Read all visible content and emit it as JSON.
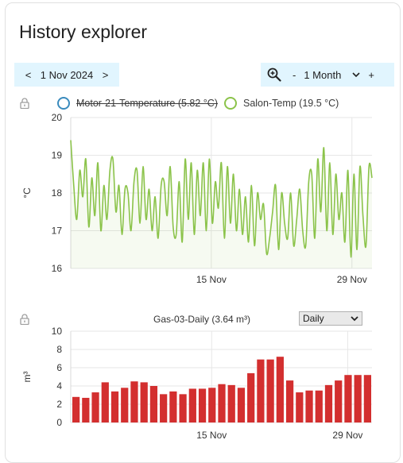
{
  "card": {
    "title": "History explorer"
  },
  "nav": {
    "prev": "<",
    "date": "1 Nov 2024",
    "next": ">"
  },
  "zoom": {
    "minus": "-",
    "range": "1 Month",
    "plus": "+",
    "icon": "zoom-icon",
    "dropdown_icon": "chevron-down-icon"
  },
  "colors": {
    "nav_bg": "#e1f5fe",
    "temp_line": "#8bc34a",
    "motor": "#3a8bbd",
    "bars": "#d32f2f"
  },
  "chart_temp": {
    "legend": [
      {
        "label": "Motor-21-Temperature (5.82 °C)",
        "hidden": true,
        "color": "#3a8bbd"
      },
      {
        "label": "Salon-Temp (19.5 °C)",
        "hidden": false,
        "color": "#8bc34a"
      }
    ]
  },
  "chart_gas": {
    "title": "Gas-03-Daily (3.64 m³)",
    "select_value": "Daily"
  },
  "chart_data": [
    {
      "type": "line",
      "ylabel": "°C",
      "ylim": [
        16,
        20
      ],
      "yticks": [
        "20",
        "19",
        "18",
        "17",
        "16"
      ],
      "xticks": [
        "15 Nov",
        "29 Nov"
      ],
      "xtick_days": [
        15,
        29
      ],
      "xrange_days": [
        1,
        31
      ],
      "series": [
        {
          "name": "Salon-Temp",
          "x_days": [
            1.0,
            1.3,
            1.6,
            1.9,
            2.2,
            2.5,
            2.8,
            3.1,
            3.4,
            3.7,
            4.0,
            4.3,
            4.6,
            4.9,
            5.2,
            5.5,
            5.8,
            6.1,
            6.4,
            6.7,
            7.0,
            7.3,
            7.6,
            7.9,
            8.2,
            8.5,
            8.8,
            9.1,
            9.4,
            9.7,
            10.0,
            10.3,
            10.6,
            10.9,
            11.2,
            11.5,
            11.8,
            12.1,
            12.4,
            12.7,
            13.0,
            13.3,
            13.6,
            13.9,
            14.2,
            14.5,
            14.8,
            15.1,
            15.4,
            15.7,
            16.0,
            16.3,
            16.6,
            16.9,
            17.2,
            17.5,
            17.8,
            18.1,
            18.4,
            18.7,
            19.0,
            19.3,
            19.6,
            19.9,
            20.2,
            20.5,
            20.8,
            21.1,
            21.4,
            21.7,
            22.0,
            22.3,
            22.6,
            22.9,
            23.2,
            23.5,
            23.8,
            24.1,
            24.4,
            24.7,
            25.0,
            25.3,
            25.6,
            25.9,
            26.2,
            26.5,
            26.8,
            27.1,
            27.4,
            27.7,
            28.0,
            28.3,
            28.6,
            28.9,
            29.2,
            29.5,
            29.8,
            30.1,
            30.4,
            30.7,
            31.0
          ],
          "values": [
            19.4,
            18.2,
            17.3,
            18.6,
            17.9,
            18.9,
            17.1,
            18.4,
            17.4,
            18.8,
            17.0,
            18.2,
            17.3,
            18.6,
            18.9,
            17.5,
            18.2,
            16.9,
            18.1,
            18.0,
            17.0,
            18.3,
            18.6,
            17.2,
            18.7,
            17.3,
            18.1,
            17.0,
            17.9,
            16.8,
            18.2,
            18.3,
            17.4,
            18.7,
            17.1,
            16.9,
            18.3,
            16.7,
            18.9,
            17.3,
            18.8,
            16.9,
            18.6,
            17.4,
            18.8,
            17.0,
            18.9,
            17.2,
            18.3,
            17.6,
            18.8,
            16.8,
            18.7,
            17.2,
            18.5,
            17.0,
            18.1,
            16.9,
            17.9,
            16.7,
            18.2,
            16.6,
            18.0,
            17.3,
            17.7,
            16.4,
            16.8,
            17.5,
            18.2,
            16.5,
            18.0,
            17.2,
            16.8,
            18.0,
            16.6,
            17.3,
            18.1,
            17.0,
            16.6,
            18.3,
            18.5,
            16.8,
            18.9,
            17.5,
            19.2,
            17.0,
            18.8,
            16.9,
            18.5,
            17.3,
            18.0,
            16.7,
            18.6,
            16.3,
            18.5,
            16.5,
            18.7,
            17.4,
            16.6,
            18.7,
            18.4
          ]
        }
      ]
    },
    {
      "type": "bar",
      "ylabel": "m³",
      "ylim": [
        0,
        10
      ],
      "yticks": [
        "10",
        "8",
        "6",
        "4",
        "2",
        "0"
      ],
      "xticks": [
        "15 Nov",
        "29 Nov"
      ],
      "xtick_days": [
        15,
        29
      ],
      "xrange_days": [
        1,
        31
      ],
      "series": [
        {
          "name": "Gas-03-Daily",
          "x_days": [
            1,
            2,
            3,
            4,
            5,
            6,
            7,
            8,
            9,
            10,
            11,
            12,
            13,
            14,
            15,
            16,
            17,
            18,
            19,
            20,
            21,
            22,
            23,
            24,
            25,
            26,
            27,
            28,
            29,
            30,
            31
          ],
          "values": [
            2.8,
            2.7,
            3.3,
            4.4,
            3.4,
            3.8,
            4.5,
            4.4,
            4.0,
            3.1,
            3.4,
            3.1,
            3.7,
            3.7,
            3.8,
            4.2,
            4.1,
            3.8,
            5.4,
            6.9,
            6.9,
            7.2,
            4.6,
            3.3,
            3.5,
            3.5,
            4.1,
            4.6,
            5.2,
            5.2,
            5.2
          ]
        }
      ]
    }
  ]
}
